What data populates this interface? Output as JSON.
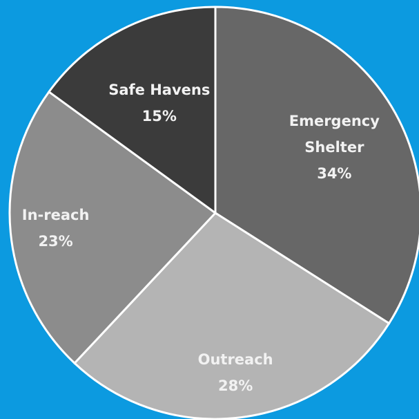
{
  "chart_data": {
    "type": "pie",
    "categories": [
      "Emergency Shelter",
      "Outreach",
      "In-reach",
      "Safe Havens"
    ],
    "values": [
      34,
      28,
      23,
      15
    ],
    "value_labels": [
      "34%",
      "28%",
      "23%",
      "15%"
    ],
    "colors": [
      "#676767",
      "#b4b4b4",
      "#8c8c8c",
      "#3b3b3b"
    ],
    "background": "#0c9ae0"
  }
}
